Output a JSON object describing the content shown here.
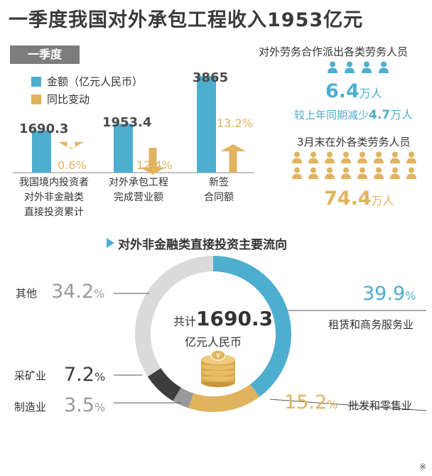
{
  "title": "一季度我国对外承包工程收入1953亿元",
  "quarter_tag": "一季度",
  "legend": {
    "blue": "金额（亿元人民币）",
    "gold": "同比变动",
    "blue_color": "#4eaecf",
    "gold_color": "#e0b35e"
  },
  "chart_data": [
    {
      "type": "bar",
      "categories": [
        "我国境内投资者对外非金融类直接投资累计",
        "对外承包工程完成营业额",
        "新签合同额"
      ],
      "category_lines": [
        [
          "我国境内投资者",
          "对外非金融类",
          "直接投资累计"
        ],
        [
          "对外承包工程",
          "完成营业额"
        ],
        [
          "新签",
          "合同额"
        ]
      ],
      "series": [
        {
          "name": "金额（亿元人民币）",
          "values": [
            1690.3,
            1953.4,
            3865
          ],
          "labels": [
            "1690.3",
            "1953.4",
            "3865"
          ]
        },
        {
          "name": "同比变动",
          "values": [
            -0.6,
            -12.4,
            13.2
          ],
          "labels": [
            "0.6%",
            "12.4%",
            "13.2%"
          ]
        }
      ]
    },
    {
      "type": "pie",
      "title": "对外非金融类直接投资主要流向",
      "center_lines": [
        "共计",
        "1690.3",
        "亿元人民币"
      ],
      "slices": [
        {
          "name": "租赁和商务服务业",
          "value": 39.9,
          "number": "39.9",
          "color": "#4eaecf"
        },
        {
          "name": "批发和零售业",
          "value": 15.2,
          "number": "15.2",
          "color": "#e0b35e"
        },
        {
          "name": "制造业",
          "value": 3.5,
          "number": "3.5",
          "color": "#9a9a9a"
        },
        {
          "name": "采矿业",
          "value": 7.2,
          "number": "7.2",
          "color": "#3d3d3d"
        },
        {
          "name": "其他",
          "value": 34.2,
          "number": "34.2",
          "color": "#dadada"
        }
      ],
      "percent_symbol": "%"
    }
  ],
  "labor": {
    "dispatch_label": "对外劳务合作派出各类劳务人员",
    "dispatch_value": "6.4",
    "unit": "万人",
    "decrease_text": "较上年同期减少",
    "decrease_value": "4.7",
    "abroad_label": "3月末在外各类劳务人员",
    "abroad_value": "74.4",
    "person_icon": "person-icon"
  },
  "corner_mark": "※"
}
